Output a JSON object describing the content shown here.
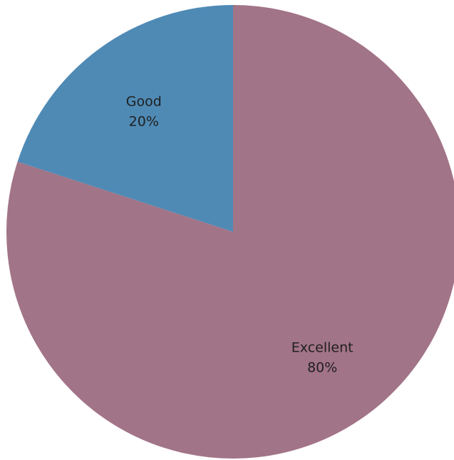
{
  "chart_data": {
    "type": "pie",
    "slices": [
      {
        "label": "Excellent",
        "value_label": "80%",
        "value": 80,
        "color": "#a27487"
      },
      {
        "label": "Good",
        "value_label": "20%",
        "value": 20,
        "color": "#4f8ab5"
      }
    ],
    "legend": "none",
    "data_labels": "inside"
  }
}
